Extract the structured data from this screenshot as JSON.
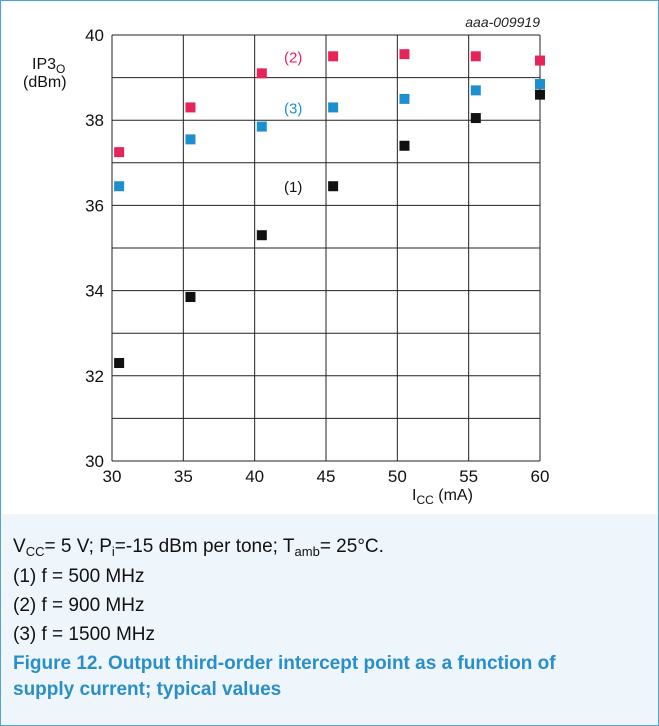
{
  "chart_data": {
    "type": "scatter",
    "figure_id": "aaa-009919",
    "ylabel_main": "IP3",
    "ylabel_sub": "O",
    "ylabel_unit": "(dBm)",
    "xlabel_main": "I",
    "xlabel_sub": "CC",
    "xlabel_unit": "(mA)",
    "xlim": [
      30,
      60
    ],
    "ylim": [
      30,
      40
    ],
    "xticks": [
      30,
      35,
      40,
      45,
      50,
      55,
      60
    ],
    "yticks": [
      30,
      32,
      34,
      36,
      38,
      40
    ],
    "grid": true,
    "series": [
      {
        "name": "(1)",
        "color": "#111111",
        "label_at": [
          42.7,
          36.45
        ],
        "x": [
          30.5,
          35.5,
          40.5,
          45.5,
          50.5,
          55.5,
          60
        ],
        "y": [
          32.3,
          33.85,
          35.3,
          36.45,
          37.4,
          38.05,
          38.6
        ]
      },
      {
        "name": "(2)",
        "color": "#e6245a",
        "label_at": [
          42.7,
          39.5
        ],
        "x": [
          30.5,
          35.5,
          40.5,
          45.5,
          50.5,
          55.5,
          60
        ],
        "y": [
          37.25,
          38.3,
          39.1,
          39.5,
          39.55,
          39.5,
          39.4
        ]
      },
      {
        "name": "(3)",
        "color": "#1e8fce",
        "label_at": [
          42.7,
          38.3
        ],
        "x": [
          30.5,
          35.5,
          40.5,
          45.5,
          50.5,
          55.5,
          60
        ],
        "y": [
          36.45,
          37.55,
          37.85,
          38.3,
          38.5,
          38.7,
          38.85
        ]
      }
    ]
  },
  "conditions": {
    "v_main": "V",
    "v_sub": "CC",
    "v_rest": "= 5 V; P",
    "p_sub": "i",
    "p_rest": "=-15 dBm per tone; T",
    "t_sub": "amb",
    "t_rest": "= 25°C."
  },
  "legend": [
    "(1) f = 500 MHz",
    "(2) f = 900 MHz",
    "(3) f = 1500 MHz"
  ],
  "caption": "Figure 12.  Output third-order intercept point as a function of supply current; typical values"
}
